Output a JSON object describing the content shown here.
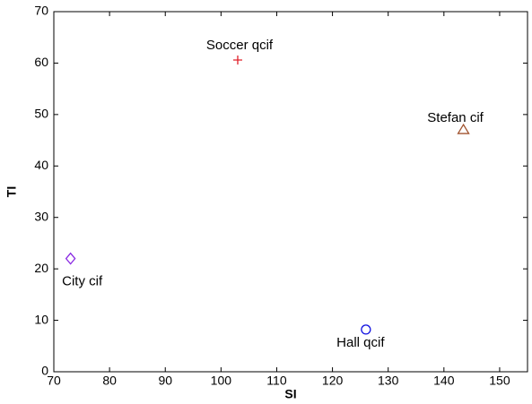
{
  "chart_data": {
    "type": "scatter",
    "x_label": "SI",
    "y_label": "TI",
    "xlim": [
      70,
      155
    ],
    "xticks": [
      70,
      80,
      90,
      100,
      110,
      120,
      130,
      140,
      150
    ],
    "ylim": [
      0,
      70
    ],
    "yticks": [
      0,
      10,
      20,
      30,
      40,
      50,
      60,
      70
    ],
    "grid": false,
    "series": [
      {
        "name": "Soccer qcif",
        "color": "#e0202a",
        "marker": "plus",
        "x": [
          103
        ],
        "values": [
          60.6
        ]
      },
      {
        "name": "Stefan cif",
        "color": "#a0522d",
        "marker": "triangle",
        "x": [
          143.5
        ],
        "values": [
          47
        ]
      },
      {
        "name": "City cif",
        "color": "#8a2be2",
        "marker": "diamond",
        "x": [
          73
        ],
        "values": [
          22
        ]
      },
      {
        "name": "Hall qcif",
        "color": "#1010e0",
        "marker": "circle",
        "x": [
          126
        ],
        "values": [
          8.2
        ]
      }
    ]
  }
}
